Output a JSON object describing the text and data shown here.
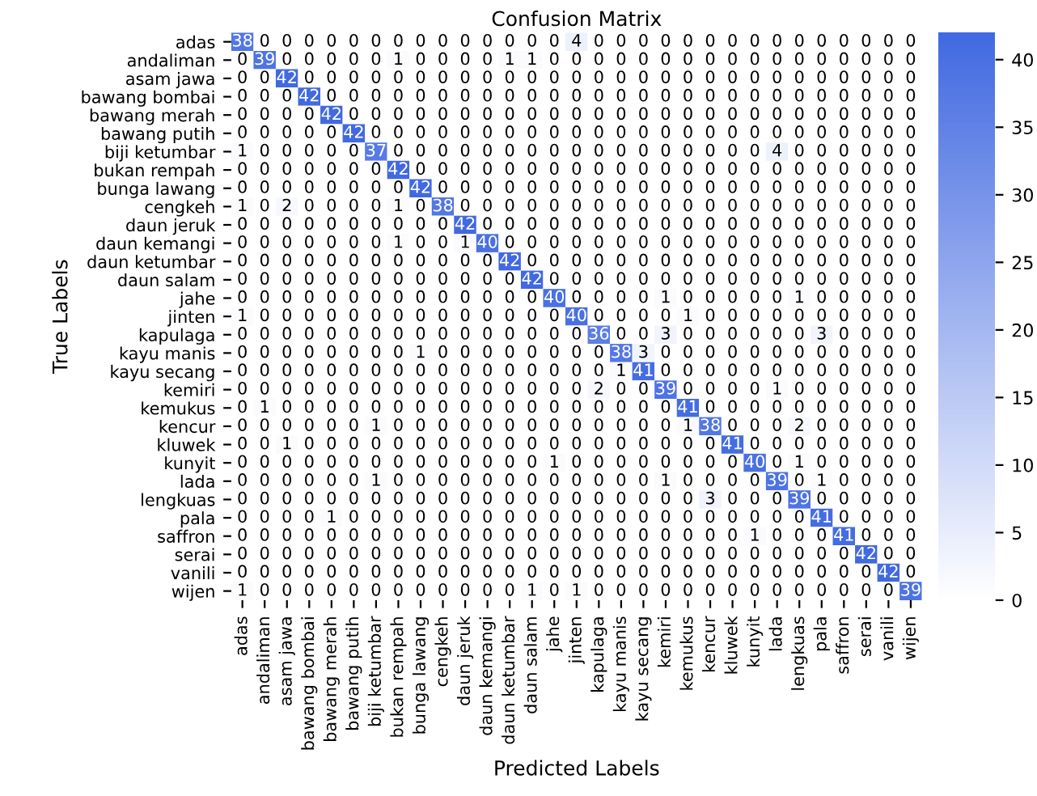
{
  "chart_data": {
    "type": "heatmap",
    "title": "Confusion Matrix",
    "xlabel": "Predicted Labels",
    "ylabel": "True Labels",
    "categories": [
      "adas",
      "andaliman",
      "asam jawa",
      "bawang bombai",
      "bawang merah",
      "bawang putih",
      "biji ketumbar",
      "bukan rempah",
      "bunga lawang",
      "cengkeh",
      "daun jeruk",
      "daun kemangi",
      "daun ketumbar",
      "daun salam",
      "jahe",
      "jinten",
      "kapulaga",
      "kayu manis",
      "kayu secang",
      "kemiri",
      "kemukus",
      "kencur",
      "kluwek",
      "kunyit",
      "lada",
      "lengkuas",
      "pala",
      "saffron",
      "serai",
      "vanili",
      "wijen"
    ],
    "y_categories": [
      "adas",
      "andaliman",
      "asam jawa",
      "bawang bombai",
      "bawang merah",
      "bawang putih",
      "biji ketumbar",
      "bukan rempah",
      "bunga lawang",
      "cengkeh",
      "daun jeruk",
      "daun kemangi",
      "daun ketumbar",
      "daun salam",
      "jahe",
      "jinten",
      "kapulaga",
      "kayu manis",
      "kayu secang",
      "kemiri",
      "kemukus",
      "kencur",
      "kluwek",
      "kunyit",
      "lada",
      "lengkuas",
      "pala",
      "saffron",
      "serai",
      "vanili",
      "wijen"
    ],
    "cells": [
      [
        38,
        0,
        0,
        0,
        0,
        0,
        0,
        0,
        0,
        0,
        0,
        0,
        0,
        0,
        0,
        4,
        0,
        0,
        0,
        0,
        0,
        0,
        0,
        0,
        0,
        0,
        0,
        0,
        0,
        0,
        0
      ],
      [
        0,
        39,
        0,
        0,
        0,
        0,
        0,
        1,
        0,
        0,
        0,
        0,
        1,
        1,
        0,
        0,
        0,
        0,
        0,
        0,
        0,
        0,
        0,
        0,
        0,
        0,
        0,
        0,
        0,
        0,
        0
      ],
      [
        0,
        0,
        42,
        0,
        0,
        0,
        0,
        0,
        0,
        0,
        0,
        0,
        0,
        0,
        0,
        0,
        0,
        0,
        0,
        0,
        0,
        0,
        0,
        0,
        0,
        0,
        0,
        0,
        0,
        0,
        0
      ],
      [
        0,
        0,
        0,
        42,
        0,
        0,
        0,
        0,
        0,
        0,
        0,
        0,
        0,
        0,
        0,
        0,
        0,
        0,
        0,
        0,
        0,
        0,
        0,
        0,
        0,
        0,
        0,
        0,
        0,
        0,
        0
      ],
      [
        0,
        0,
        0,
        0,
        42,
        0,
        0,
        0,
        0,
        0,
        0,
        0,
        0,
        0,
        0,
        0,
        0,
        0,
        0,
        0,
        0,
        0,
        0,
        0,
        0,
        0,
        0,
        0,
        0,
        0,
        0
      ],
      [
        0,
        0,
        0,
        0,
        0,
        42,
        0,
        0,
        0,
        0,
        0,
        0,
        0,
        0,
        0,
        0,
        0,
        0,
        0,
        0,
        0,
        0,
        0,
        0,
        0,
        0,
        0,
        0,
        0,
        0,
        0
      ],
      [
        1,
        0,
        0,
        0,
        0,
        0,
        37,
        0,
        0,
        0,
        0,
        0,
        0,
        0,
        0,
        0,
        0,
        0,
        0,
        0,
        0,
        0,
        0,
        0,
        4,
        0,
        0,
        0,
        0,
        0,
        0
      ],
      [
        0,
        0,
        0,
        0,
        0,
        0,
        0,
        42,
        0,
        0,
        0,
        0,
        0,
        0,
        0,
        0,
        0,
        0,
        0,
        0,
        0,
        0,
        0,
        0,
        0,
        0,
        0,
        0,
        0,
        0,
        0
      ],
      [
        0,
        0,
        0,
        0,
        0,
        0,
        0,
        0,
        42,
        0,
        0,
        0,
        0,
        0,
        0,
        0,
        0,
        0,
        0,
        0,
        0,
        0,
        0,
        0,
        0,
        0,
        0,
        0,
        0,
        0,
        0
      ],
      [
        1,
        0,
        2,
        0,
        0,
        0,
        0,
        1,
        0,
        38,
        0,
        0,
        0,
        0,
        0,
        0,
        0,
        0,
        0,
        0,
        0,
        0,
        0,
        0,
        0,
        0,
        0,
        0,
        0,
        0,
        0
      ],
      [
        0,
        0,
        0,
        0,
        0,
        0,
        0,
        0,
        0,
        0,
        42,
        0,
        0,
        0,
        0,
        0,
        0,
        0,
        0,
        0,
        0,
        0,
        0,
        0,
        0,
        0,
        0,
        0,
        0,
        0,
        0
      ],
      [
        0,
        0,
        0,
        0,
        0,
        0,
        0,
        1,
        0,
        0,
        1,
        40,
        0,
        0,
        0,
        0,
        0,
        0,
        0,
        0,
        0,
        0,
        0,
        0,
        0,
        0,
        0,
        0,
        0,
        0,
        0
      ],
      [
        0,
        0,
        0,
        0,
        0,
        0,
        0,
        0,
        0,
        0,
        0,
        0,
        42,
        0,
        0,
        0,
        0,
        0,
        0,
        0,
        0,
        0,
        0,
        0,
        0,
        0,
        0,
        0,
        0,
        0,
        0
      ],
      [
        0,
        0,
        0,
        0,
        0,
        0,
        0,
        0,
        0,
        0,
        0,
        0,
        0,
        42,
        0,
        0,
        0,
        0,
        0,
        0,
        0,
        0,
        0,
        0,
        0,
        0,
        0,
        0,
        0,
        0,
        0
      ],
      [
        0,
        0,
        0,
        0,
        0,
        0,
        0,
        0,
        0,
        0,
        0,
        0,
        0,
        0,
        40,
        0,
        0,
        0,
        0,
        1,
        0,
        0,
        0,
        0,
        0,
        1,
        0,
        0,
        0,
        0,
        0
      ],
      [
        1,
        0,
        0,
        0,
        0,
        0,
        0,
        0,
        0,
        0,
        0,
        0,
        0,
        0,
        0,
        40,
        0,
        0,
        0,
        0,
        1,
        0,
        0,
        0,
        0,
        0,
        0,
        0,
        0,
        0,
        0
      ],
      [
        0,
        0,
        0,
        0,
        0,
        0,
        0,
        0,
        0,
        0,
        0,
        0,
        0,
        0,
        0,
        0,
        36,
        0,
        0,
        3,
        0,
        0,
        0,
        0,
        0,
        0,
        3,
        0,
        0,
        0,
        0
      ],
      [
        0,
        0,
        0,
        0,
        0,
        0,
        0,
        0,
        1,
        0,
        0,
        0,
        0,
        0,
        0,
        0,
        0,
        38,
        3,
        0,
        0,
        0,
        0,
        0,
        0,
        0,
        0,
        0,
        0,
        0,
        0
      ],
      [
        0,
        0,
        0,
        0,
        0,
        0,
        0,
        0,
        0,
        0,
        0,
        0,
        0,
        0,
        0,
        0,
        0,
        1,
        41,
        0,
        0,
        0,
        0,
        0,
        0,
        0,
        0,
        0,
        0,
        0,
        0
      ],
      [
        0,
        0,
        0,
        0,
        0,
        0,
        0,
        0,
        0,
        0,
        0,
        0,
        0,
        0,
        0,
        0,
        2,
        0,
        0,
        39,
        0,
        0,
        0,
        0,
        1,
        0,
        0,
        0,
        0,
        0,
        0
      ],
      [
        0,
        1,
        0,
        0,
        0,
        0,
        0,
        0,
        0,
        0,
        0,
        0,
        0,
        0,
        0,
        0,
        0,
        0,
        0,
        0,
        41,
        0,
        0,
        0,
        0,
        0,
        0,
        0,
        0,
        0,
        0
      ],
      [
        0,
        0,
        0,
        0,
        0,
        0,
        1,
        0,
        0,
        0,
        0,
        0,
        0,
        0,
        0,
        0,
        0,
        0,
        0,
        0,
        1,
        38,
        0,
        0,
        0,
        2,
        0,
        0,
        0,
        0,
        0
      ],
      [
        0,
        0,
        1,
        0,
        0,
        0,
        0,
        0,
        0,
        0,
        0,
        0,
        0,
        0,
        0,
        0,
        0,
        0,
        0,
        0,
        0,
        0,
        41,
        0,
        0,
        0,
        0,
        0,
        0,
        0,
        0
      ],
      [
        0,
        0,
        0,
        0,
        0,
        0,
        0,
        0,
        0,
        0,
        0,
        0,
        0,
        0,
        1,
        0,
        0,
        0,
        0,
        0,
        0,
        0,
        0,
        40,
        0,
        1,
        0,
        0,
        0,
        0,
        0
      ],
      [
        0,
        0,
        0,
        0,
        0,
        0,
        1,
        0,
        0,
        0,
        0,
        0,
        0,
        0,
        0,
        0,
        0,
        0,
        0,
        1,
        0,
        0,
        0,
        0,
        39,
        0,
        1,
        0,
        0,
        0,
        0
      ],
      [
        0,
        0,
        0,
        0,
        0,
        0,
        0,
        0,
        0,
        0,
        0,
        0,
        0,
        0,
        0,
        0,
        0,
        0,
        0,
        0,
        0,
        3,
        0,
        0,
        0,
        39,
        0,
        0,
        0,
        0,
        0
      ],
      [
        0,
        0,
        0,
        0,
        1,
        0,
        0,
        0,
        0,
        0,
        0,
        0,
        0,
        0,
        0,
        0,
        0,
        0,
        0,
        0,
        0,
        0,
        0,
        0,
        0,
        0,
        41,
        0,
        0,
        0,
        0
      ],
      [
        0,
        0,
        0,
        0,
        0,
        0,
        0,
        0,
        0,
        0,
        0,
        0,
        0,
        0,
        0,
        0,
        0,
        0,
        0,
        0,
        0,
        0,
        0,
        1,
        0,
        0,
        0,
        41,
        0,
        0,
        0
      ],
      [
        0,
        0,
        0,
        0,
        0,
        0,
        0,
        0,
        0,
        0,
        0,
        0,
        0,
        0,
        0,
        0,
        0,
        0,
        0,
        0,
        0,
        0,
        0,
        0,
        0,
        0,
        0,
        0,
        42,
        0,
        0
      ],
      [
        0,
        0,
        0,
        0,
        0,
        0,
        0,
        0,
        0,
        0,
        0,
        0,
        0,
        0,
        0,
        0,
        0,
        0,
        0,
        0,
        0,
        0,
        0,
        0,
        0,
        0,
        0,
        0,
        0,
        42,
        0
      ],
      [
        1,
        0,
        0,
        0,
        0,
        0,
        0,
        0,
        0,
        0,
        0,
        0,
        0,
        1,
        0,
        1,
        0,
        0,
        0,
        0,
        0,
        0,
        0,
        0,
        0,
        0,
        0,
        0,
        0,
        0,
        39
      ]
    ],
    "data_labels": true,
    "clim": [
      0,
      42
    ],
    "cticks": [
      0,
      5,
      10,
      15,
      20,
      25,
      30,
      35,
      40
    ]
  }
}
